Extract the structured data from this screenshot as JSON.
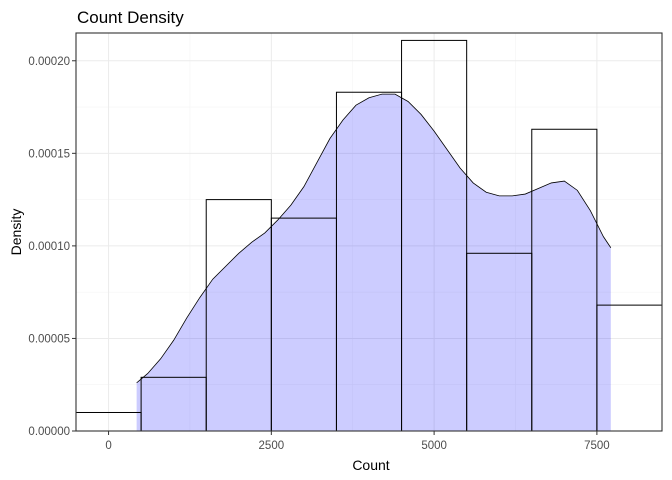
{
  "chart_data": {
    "type": "histogram+density",
    "title": "Count Density",
    "xlabel": "Count",
    "ylabel": "Density",
    "xlim": [
      -500,
      8500
    ],
    "ylim": [
      0,
      0.000215
    ],
    "x_ticks": [
      0,
      2500,
      5000,
      7500
    ],
    "x_tick_labels": [
      "0",
      "2500",
      "5000",
      "7500"
    ],
    "y_ticks": [
      0,
      5e-05,
      0.0001,
      0.00015,
      0.0002
    ],
    "y_tick_labels": [
      "0.00000",
      "0.00005",
      "0.00010",
      "0.00015",
      "0.00020"
    ],
    "grid": true,
    "histogram": {
      "bin_width": 1000,
      "bins": [
        {
          "x0": -500,
          "x1": 500,
          "density": 1e-05
        },
        {
          "x0": 500,
          "x1": 1500,
          "density": 2.9e-05
        },
        {
          "x0": 1500,
          "x1": 2500,
          "density": 0.000125
        },
        {
          "x0": 2500,
          "x1": 3500,
          "density": 0.000115
        },
        {
          "x0": 3500,
          "x1": 4500,
          "density": 0.000183
        },
        {
          "x0": 4500,
          "x1": 5500,
          "density": 0.000211
        },
        {
          "x0": 5500,
          "x1": 6500,
          "density": 9.6e-05
        },
        {
          "x0": 6500,
          "x1": 7500,
          "density": 0.000163
        },
        {
          "x0": 7500,
          "x1": 8500,
          "density": 6.8e-05
        }
      ]
    },
    "density": {
      "fill_color": "#0000ff",
      "fill_opacity": 0.2,
      "x": [
        431,
        600,
        800,
        1000,
        1200,
        1400,
        1600,
        1800,
        2000,
        2200,
        2400,
        2600,
        2800,
        3000,
        3200,
        3400,
        3600,
        3800,
        4000,
        4200,
        4400,
        4600,
        4800,
        5000,
        5200,
        5400,
        5600,
        5800,
        6000,
        6200,
        6400,
        6600,
        6800,
        7000,
        7200,
        7400,
        7600,
        7714
      ],
      "y": [
        2.6e-05,
        3.1e-05,
        3.9e-05,
        4.9e-05,
        6.1e-05,
        7.2e-05,
        8.2e-05,
        8.9e-05,
        9.6e-05,
        0.000102,
        0.000107,
        0.000114,
        0.000122,
        0.000132,
        0.000145,
        0.000158,
        0.000168,
        0.000176,
        0.00018,
        0.000182,
        0.000182,
        0.000178,
        0.000171,
        0.000162,
        0.000152,
        0.000142,
        0.000134,
        0.000129,
        0.000127,
        0.000127,
        0.000128,
        0.000131,
        0.000134,
        0.000135,
        0.00013,
        0.000119,
        0.000105,
        9.9e-05
      ]
    }
  }
}
